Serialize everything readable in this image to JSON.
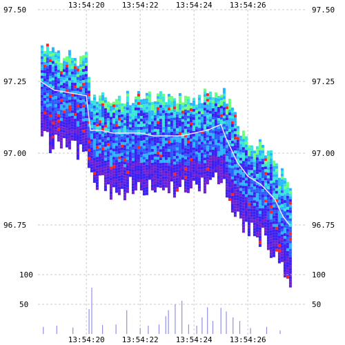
{
  "chart_data": [
    {
      "type": "heatmap",
      "title": "",
      "xlabel": "",
      "ylabel": "",
      "x_ticks": [
        "13:54:20",
        "13:54:22",
        "13:54:24",
        "13:54:26"
      ],
      "x_tick_seconds": [
        20,
        22,
        24,
        26
      ],
      "x_range_seconds": [
        18.2,
        28.2
      ],
      "y_ticks": [
        "97.50",
        "97.25",
        "97.00",
        "96.75"
      ],
      "y_tick_values": [
        97.5,
        97.25,
        97.0,
        96.75
      ],
      "ylim": [
        96.57,
        97.5
      ],
      "grid": true,
      "colors": {
        "density_scale": [
          "#6d1fd6",
          "#3b1ff5",
          "#2a5cff",
          "#2ab4ff",
          "#35e8d8",
          "#6cff7a",
          "#c8f020",
          "#ff2020"
        ],
        "mid_price_line": "#f2e6ff"
      },
      "mid_price_series": {
        "name": "",
        "t": [
          18.3,
          18.8,
          19.4,
          20.0,
          20.15,
          20.5,
          21.0,
          21.5,
          22.0,
          22.5,
          23.0,
          23.5,
          24.0,
          24.5,
          25.0,
          25.2,
          25.6,
          26.0,
          26.5,
          27.0,
          27.3,
          27.55
        ],
        "price": [
          97.25,
          97.22,
          97.21,
          97.2,
          97.08,
          97.08,
          97.07,
          97.07,
          97.07,
          97.06,
          97.06,
          97.06,
          97.07,
          97.08,
          97.1,
          97.05,
          96.97,
          96.92,
          96.89,
          96.84,
          96.78,
          96.75
        ]
      }
    },
    {
      "type": "bar",
      "title": "",
      "xlabel": "",
      "ylabel": "",
      "x_ticks": [
        "13:54:20",
        "13:54:22",
        "13:54:24",
        "13:54:26"
      ],
      "x_tick_seconds": [
        20,
        22,
        24,
        26
      ],
      "y_ticks": [
        "100",
        "50"
      ],
      "y_tick_values": [
        100,
        50
      ],
      "ylim": [
        0,
        120
      ],
      "colors": {
        "bar": "#8f8fe6"
      },
      "volume_t": [
        18.4,
        18.9,
        19.5,
        20.1,
        20.2,
        20.6,
        21.1,
        21.5,
        22.0,
        22.3,
        22.7,
        22.95,
        23.05,
        23.3,
        23.55,
        23.8,
        24.1,
        24.3,
        24.5,
        24.7,
        25.0,
        25.2,
        25.45,
        25.7,
        26.1,
        26.7,
        27.2
      ],
      "volume": [
        12,
        14,
        11,
        42,
        78,
        15,
        16,
        40,
        10,
        14,
        16,
        30,
        40,
        50,
        56,
        16,
        14,
        28,
        45,
        22,
        44,
        38,
        28,
        22,
        10,
        12,
        6
      ]
    }
  ]
}
